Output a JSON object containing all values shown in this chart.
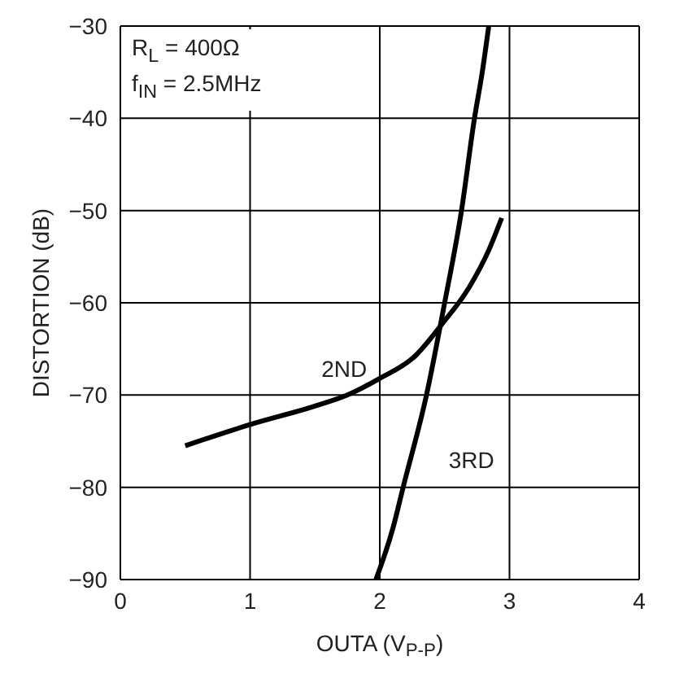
{
  "chart_data": {
    "type": "line",
    "xlabel": "OUTA (V$_{P-P}$)",
    "ylabel": "DISTORTION (dB)",
    "xlim": [
      0,
      4
    ],
    "xticks": [
      0,
      1,
      2,
      3,
      4
    ],
    "ylim": [
      -90,
      -30
    ],
    "yticks": [
      -90,
      -80,
      -70,
      -60,
      -50,
      -40,
      -30
    ],
    "grid": true,
    "legend": false,
    "marker": "none",
    "line_style": "solid",
    "series": [
      {
        "name": "2ND",
        "color": "#000000",
        "x": [
          0.5,
          1,
          1.5,
          1.75,
          2,
          2.27,
          2.48,
          2.69,
          2.84,
          2.94
        ],
        "values": [
          -75.5,
          -73.2,
          -71.2,
          -70,
          -68.2,
          -65.8,
          -62.3,
          -58.3,
          -54.3,
          -50.8
        ]
      },
      {
        "name": "3RD",
        "color": "#000000",
        "x": [
          1.97,
          2.1,
          2.18,
          2.36,
          2.5,
          2.63,
          2.73,
          2.79,
          2.84
        ],
        "values": [
          -90,
          -84.5,
          -80,
          -70,
          -60,
          -50,
          -40,
          -35,
          -30
        ]
      }
    ],
    "annotations": [
      "R$_{L}$ = 400Ω",
      "f$_{IN}$ = 2.5MHz"
    ]
  }
}
